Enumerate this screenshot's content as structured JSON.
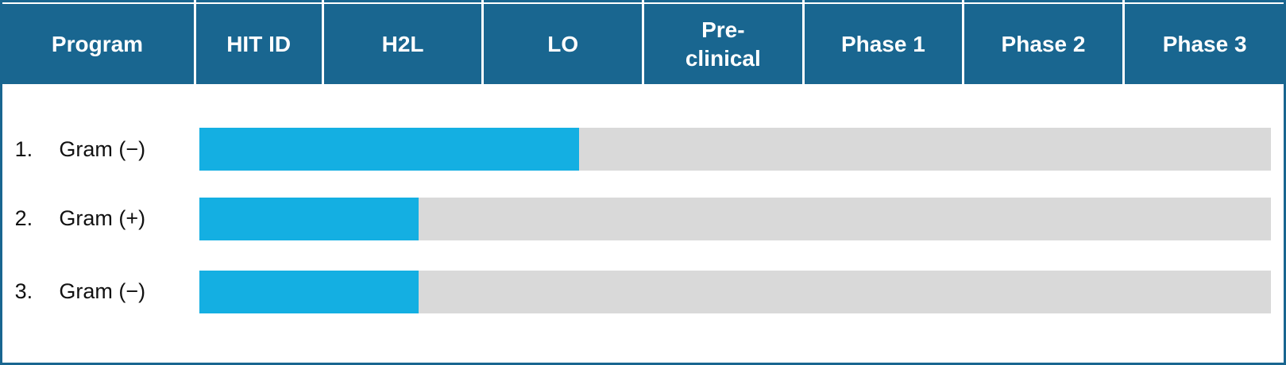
{
  "chart_data": {
    "type": "pipeline",
    "header": "Program",
    "stages": [
      "HIT ID",
      "H2L",
      "LO",
      "Pre-clinical",
      "Phase 1",
      "Phase 2",
      "Phase 3"
    ],
    "programs": [
      {
        "number": "1.",
        "name": "Gram (−)"
      },
      {
        "number": "2.",
        "name": "Gram (+)"
      },
      {
        "number": "3.",
        "name": "Gram (−)"
      }
    ],
    "values": [
      2.6,
      1.6,
      1.6
    ],
    "color": "#14afe2",
    "track_color": "#d9d9d9",
    "header_color": "#196690"
  }
}
